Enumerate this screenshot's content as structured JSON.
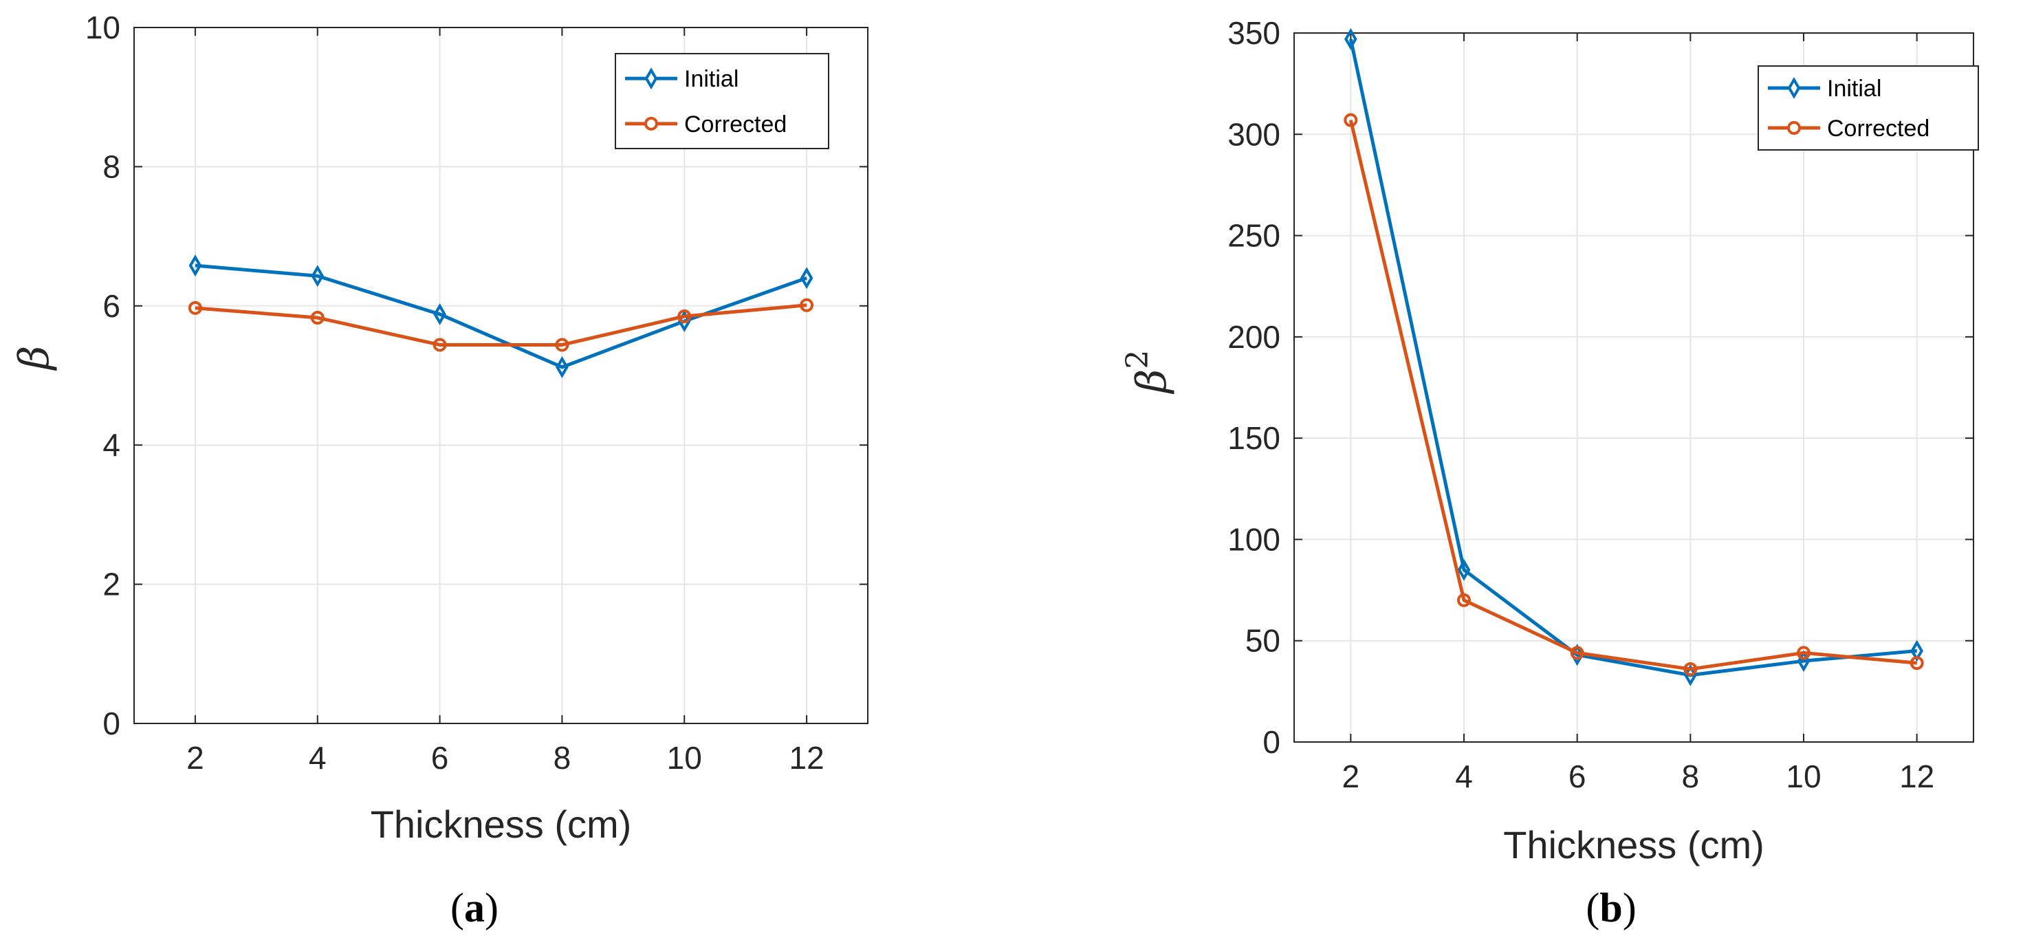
{
  "chart_data": [
    {
      "type": "line",
      "panel_label": "(a)",
      "panel_label_parts": {
        "open": "(",
        "letter": "a",
        "close": ")"
      },
      "xlabel": "Thickness (cm)",
      "ylabel": "β",
      "x": [
        2,
        4,
        6,
        8,
        10,
        12
      ],
      "xticks": [
        2,
        4,
        6,
        8,
        10,
        12
      ],
      "xlim": [
        1,
        13
      ],
      "ylim": [
        0,
        10
      ],
      "yticks": [
        0,
        2,
        4,
        6,
        8,
        10
      ],
      "grid": true,
      "legend_position": "top-right",
      "series": [
        {
          "name": "Initial",
          "marker": "diamond",
          "color": "#0072BD",
          "values": [
            6.58,
            6.43,
            5.88,
            5.12,
            5.78,
            6.4
          ]
        },
        {
          "name": "Corrected",
          "marker": "circle",
          "color": "#D95319",
          "values": [
            5.97,
            5.83,
            5.44,
            5.44,
            5.85,
            6.01
          ]
        }
      ]
    },
    {
      "type": "line",
      "panel_label": "(b)",
      "panel_label_parts": {
        "open": "(",
        "letter": "b",
        "close": ")"
      },
      "xlabel": "Thickness (cm)",
      "ylabel": "β",
      "ylabel_superscript": "2",
      "x": [
        2,
        4,
        6,
        8,
        10,
        12
      ],
      "xticks": [
        2,
        4,
        6,
        8,
        10,
        12
      ],
      "xlim": [
        1,
        13
      ],
      "ylim": [
        0,
        350
      ],
      "yticks": [
        0,
        50,
        100,
        150,
        200,
        250,
        300,
        350
      ],
      "grid": true,
      "legend_position": "top-right",
      "series": [
        {
          "name": "Initial",
          "marker": "diamond",
          "color": "#0072BD",
          "values": [
            347,
            85,
            43,
            33,
            40,
            45
          ]
        },
        {
          "name": "Corrected",
          "marker": "circle",
          "color": "#D95319",
          "values": [
            307,
            70,
            44,
            36,
            44,
            39
          ]
        }
      ]
    }
  ]
}
